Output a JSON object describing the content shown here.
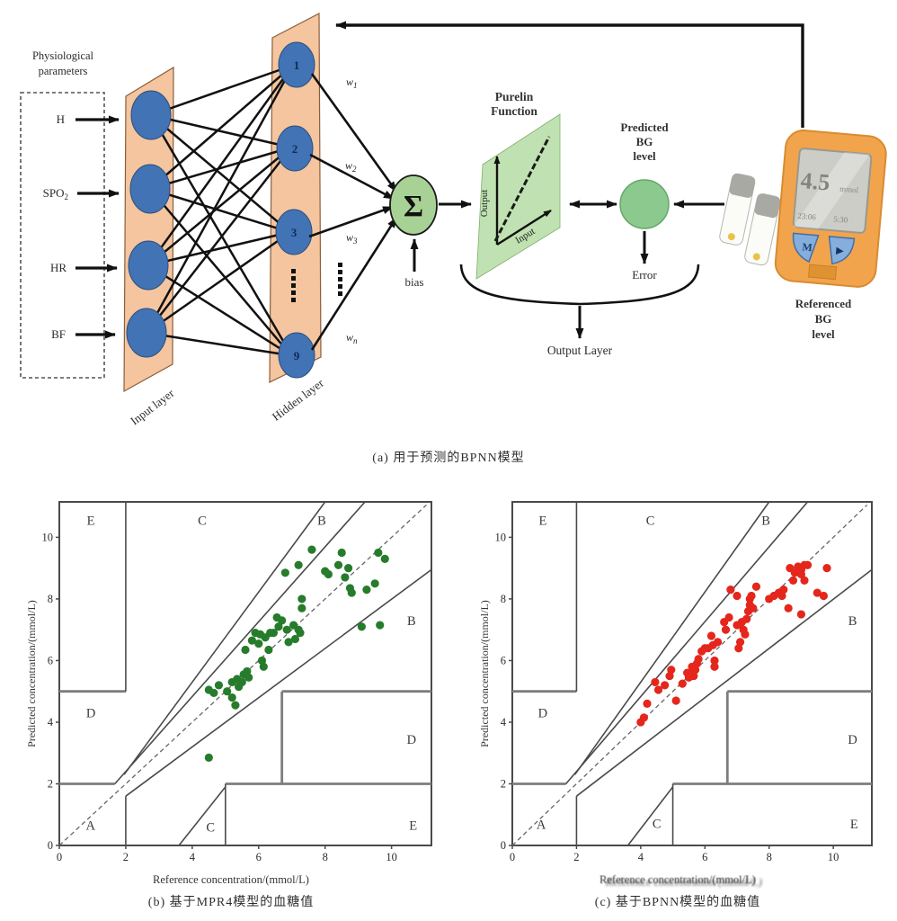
{
  "diagram": {
    "physio_line1": "Physiological",
    "physio_line2": "parameters",
    "inputs": [
      "H",
      "SPO",
      "HR",
      "BF"
    ],
    "spo_sub": "2",
    "input_layer_label": "Input layer",
    "hidden_layer_label": "Hidden layer",
    "hidden_nodes": [
      "1",
      "2",
      "3",
      "9"
    ],
    "weight_base": "w",
    "weight_subs": [
      "1",
      "2",
      "3",
      "n"
    ],
    "sigma": "Σ",
    "bias_label": "bias",
    "purelin_line1": "Purelin",
    "purelin_line2": "Function",
    "purelin_y_axis": "Output",
    "purelin_x_axis": "Input",
    "predicted_lines": [
      "Predicted",
      "BG",
      "level"
    ],
    "error_label": "Error",
    "output_layer_label": "Output Layer",
    "referenced_lines": [
      "Referenced",
      "BG",
      "level"
    ],
    "meter": {
      "reading": "4.5",
      "unit": "mmol",
      "status_left": "23:06",
      "status_right": "5:30",
      "button_m": "M",
      "button_play": "▶"
    },
    "caption": "(a) 用于预测的BPNN模型"
  },
  "clarke_grid": {
    "identity": [
      0,
      0,
      11.05,
      11.05
    ],
    "thin_lines": [
      [
        2,
        5,
        2,
        11.15
      ],
      [
        1.67,
        2,
        9.2,
        11.15
      ],
      [
        1.95,
        2.3,
        8.0,
        11.15
      ],
      [
        2,
        0,
        2,
        1.6
      ],
      [
        2,
        1.6,
        11.2,
        8.95
      ],
      [
        3.6,
        0,
        5,
        1.9
      ],
      [
        5,
        0,
        5,
        2
      ]
    ],
    "thick_lines": [
      [
        0,
        5,
        2,
        5
      ],
      [
        0,
        2,
        1.67,
        2
      ],
      [
        5,
        2,
        11.2,
        2
      ],
      [
        6.7,
        2,
        6.7,
        5
      ],
      [
        6.7,
        5,
        11.2,
        5
      ]
    ]
  },
  "chart_data": [
    {
      "type": "scatter",
      "title": "(b) 基于MPR4模型的血糖值",
      "xlabel": "Reference concentration/(mmol/L)",
      "ylabel": "Predicted concentration/(mmol/L)",
      "xlim": [
        0,
        11.2
      ],
      "ylim": [
        0,
        11.15
      ],
      "xticks": [
        0,
        2,
        4,
        6,
        8,
        10
      ],
      "yticks": [
        0,
        2,
        4,
        6,
        8,
        10
      ],
      "point_color": "#277c2b",
      "zones": [
        {
          "label": "E",
          "x": 0.95,
          "y": 10.55
        },
        {
          "label": "C",
          "x": 4.3,
          "y": 10.55
        },
        {
          "label": "B",
          "x": 7.9,
          "y": 10.55
        },
        {
          "label": "B",
          "x": 10.6,
          "y": 7.3
        },
        {
          "label": "D",
          "x": 0.95,
          "y": 4.3
        },
        {
          "label": "D",
          "x": 10.6,
          "y": 3.45
        },
        {
          "label": "A",
          "x": 0.94,
          "y": 0.65
        },
        {
          "label": "C",
          "x": 4.55,
          "y": 0.6
        },
        {
          "label": "E",
          "x": 10.65,
          "y": 0.65
        }
      ],
      "points": [
        [
          4.5,
          2.85
        ],
        [
          4.5,
          5.05
        ],
        [
          4.65,
          4.95
        ],
        [
          4.8,
          5.2
        ],
        [
          5.05,
          5.0
        ],
        [
          5.2,
          5.3
        ],
        [
          5.2,
          4.8
        ],
        [
          5.3,
          4.55
        ],
        [
          5.35,
          5.4
        ],
        [
          5.4,
          5.15
        ],
        [
          5.5,
          5.3
        ],
        [
          5.55,
          5.55
        ],
        [
          5.6,
          6.35
        ],
        [
          5.65,
          5.65
        ],
        [
          5.7,
          5.45
        ],
        [
          5.8,
          6.65
        ],
        [
          5.9,
          6.9
        ],
        [
          6.0,
          6.55
        ],
        [
          6.05,
          6.85
        ],
        [
          6.1,
          6.0
        ],
        [
          6.15,
          5.8
        ],
        [
          6.2,
          6.75
        ],
        [
          6.3,
          6.35
        ],
        [
          6.35,
          6.9
        ],
        [
          6.45,
          6.9
        ],
        [
          6.55,
          7.4
        ],
        [
          6.6,
          7.1
        ],
        [
          6.7,
          7.3
        ],
        [
          6.8,
          8.85
        ],
        [
          6.85,
          7.0
        ],
        [
          6.9,
          6.6
        ],
        [
          7.05,
          7.15
        ],
        [
          7.1,
          6.7
        ],
        [
          7.2,
          9.1
        ],
        [
          7.2,
          7.0
        ],
        [
          7.25,
          6.9
        ],
        [
          7.3,
          8.0
        ],
        [
          7.3,
          7.7
        ],
        [
          7.6,
          9.6
        ],
        [
          8.0,
          8.9
        ],
        [
          8.1,
          8.8
        ],
        [
          8.4,
          9.1
        ],
        [
          8.5,
          9.5
        ],
        [
          8.6,
          8.7
        ],
        [
          8.7,
          9.0
        ],
        [
          8.75,
          8.35
        ],
        [
          8.8,
          8.2
        ],
        [
          9.1,
          7.1
        ],
        [
          9.25,
          8.3
        ],
        [
          9.5,
          8.5
        ],
        [
          9.6,
          9.5
        ],
        [
          9.65,
          7.15
        ],
        [
          9.8,
          9.3
        ]
      ]
    },
    {
      "type": "scatter",
      "title": "(c) 基于BPNN模型的血糖值",
      "xlabel": "Reference concentration/(mmol/L)",
      "ylabel": "Predicted concentration/(mmol/L)",
      "xlim": [
        0,
        11.2
      ],
      "ylim": [
        0,
        11.15
      ],
      "xticks": [
        0,
        2,
        4,
        6,
        8,
        10
      ],
      "yticks": [
        0,
        2,
        4,
        6,
        8,
        10
      ],
      "point_color": "#e4261c",
      "zones": [
        {
          "label": "E",
          "x": 0.95,
          "y": 10.55
        },
        {
          "label": "C",
          "x": 4.3,
          "y": 10.55
        },
        {
          "label": "B",
          "x": 7.9,
          "y": 10.55
        },
        {
          "label": "B",
          "x": 10.6,
          "y": 7.3
        },
        {
          "label": "D",
          "x": 0.95,
          "y": 4.3
        },
        {
          "label": "D",
          "x": 10.6,
          "y": 3.45
        },
        {
          "label": "A",
          "x": 0.9,
          "y": 0.68
        },
        {
          "label": "C",
          "x": 4.5,
          "y": 0.72
        },
        {
          "label": "E",
          "x": 10.65,
          "y": 0.7
        }
      ],
      "points": [
        [
          4.0,
          4.0
        ],
        [
          4.1,
          4.15
        ],
        [
          4.2,
          4.6
        ],
        [
          4.45,
          5.3
        ],
        [
          4.55,
          5.05
        ],
        [
          4.75,
          5.2
        ],
        [
          4.9,
          5.5
        ],
        [
          4.95,
          5.7
        ],
        [
          5.1,
          4.7
        ],
        [
          5.3,
          5.25
        ],
        [
          5.45,
          5.6
        ],
        [
          5.5,
          5.45
        ],
        [
          5.55,
          5.6
        ],
        [
          5.6,
          5.8
        ],
        [
          5.65,
          5.5
        ],
        [
          5.7,
          5.7
        ],
        [
          5.75,
          5.9
        ],
        [
          5.8,
          6.05
        ],
        [
          5.9,
          6.3
        ],
        [
          6.0,
          6.4
        ],
        [
          6.1,
          6.4
        ],
        [
          6.2,
          6.8
        ],
        [
          6.25,
          6.5
        ],
        [
          6.3,
          6.0
        ],
        [
          6.3,
          5.8
        ],
        [
          6.4,
          6.6
        ],
        [
          6.6,
          7.25
        ],
        [
          6.65,
          7.0
        ],
        [
          6.75,
          7.4
        ],
        [
          6.8,
          8.3
        ],
        [
          7.0,
          8.1
        ],
        [
          7.0,
          7.15
        ],
        [
          7.05,
          6.4
        ],
        [
          7.1,
          6.6
        ],
        [
          7.15,
          7.25
        ],
        [
          7.2,
          7.0
        ],
        [
          7.25,
          6.85
        ],
        [
          7.3,
          7.35
        ],
        [
          7.35,
          7.6
        ],
        [
          7.4,
          7.8
        ],
        [
          7.4,
          8.0
        ],
        [
          7.45,
          8.1
        ],
        [
          7.5,
          7.7
        ],
        [
          7.6,
          8.4
        ],
        [
          8.0,
          8.0
        ],
        [
          8.15,
          8.1
        ],
        [
          8.3,
          8.2
        ],
        [
          8.4,
          8.1
        ],
        [
          8.45,
          8.3
        ],
        [
          8.6,
          7.7
        ],
        [
          8.65,
          9.0
        ],
        [
          8.75,
          8.6
        ],
        [
          8.8,
          8.85
        ],
        [
          8.9,
          9.05
        ],
        [
          9.0,
          8.95
        ],
        [
          9.0,
          8.8
        ],
        [
          9.0,
          7.5
        ],
        [
          9.1,
          9.1
        ],
        [
          9.1,
          8.6
        ],
        [
          9.2,
          9.1
        ],
        [
          9.5,
          8.2
        ],
        [
          9.7,
          8.1
        ],
        [
          9.8,
          9.0
        ]
      ]
    }
  ]
}
